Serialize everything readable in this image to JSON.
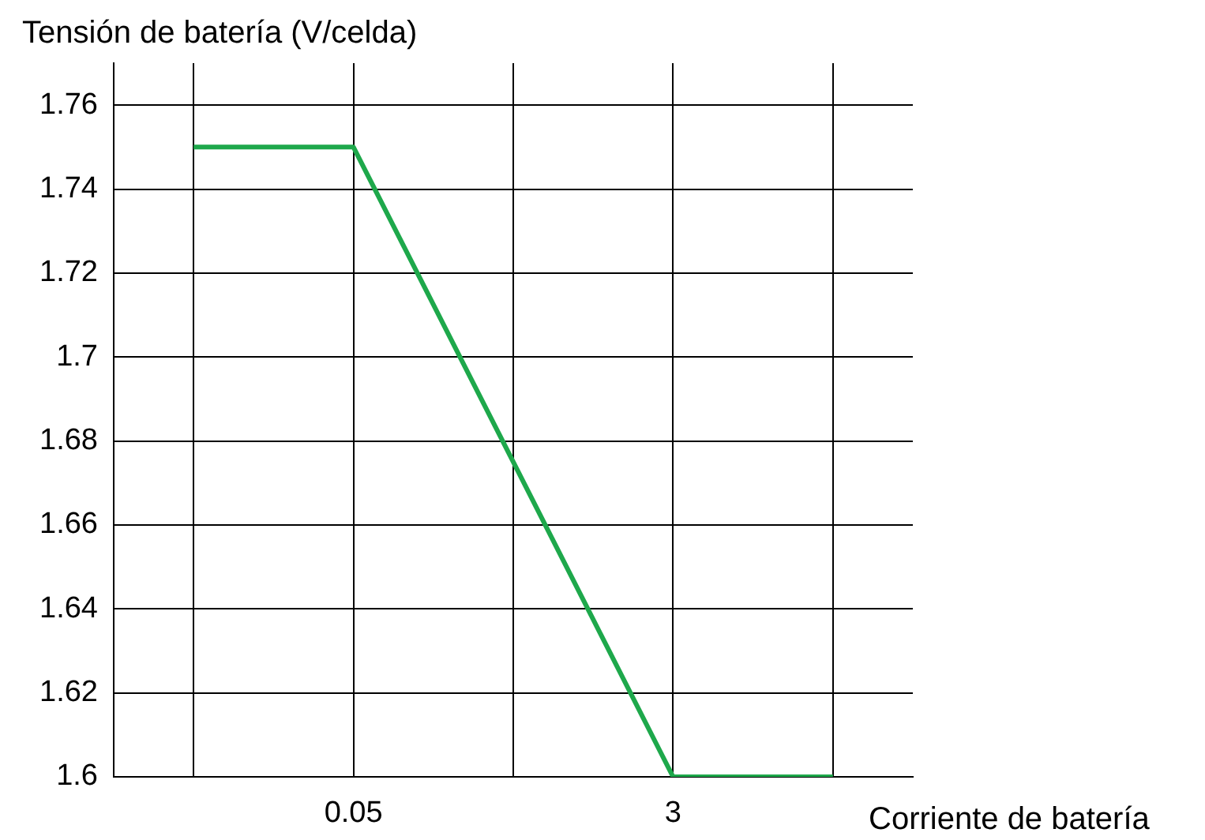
{
  "chart_data": {
    "type": "line",
    "ylabel": "Tensión de batería (V/celda)",
    "xlabel": "Corriente de batería",
    "categories": [
      null,
      "0.05",
      null,
      "3",
      null
    ],
    "series": [
      {
        "color": "#1ea84b",
        "values": [
          1.75,
          1.75,
          1.675,
          1.6,
          1.6
        ]
      }
    ],
    "ylim": [
      1.6,
      1.77
    ],
    "yticks": [
      1.6,
      1.62,
      1.64,
      1.66,
      1.68,
      1.7,
      1.72,
      1.74,
      1.76
    ],
    "grid": true,
    "legend": false,
    "marker": "none",
    "line_style": "solid"
  }
}
